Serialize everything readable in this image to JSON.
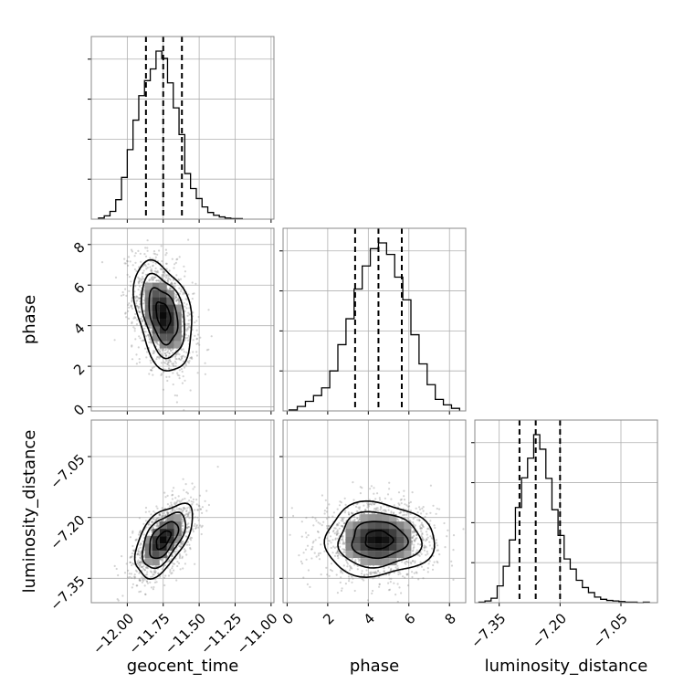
{
  "chart_data": {
    "type": "corner",
    "parameters": [
      "geocent_time",
      "phase",
      "luminosity_distance"
    ],
    "grid": true,
    "point_color": "#808080",
    "line_color": "#000000",
    "diagonal": [
      {
        "parameter": "geocent_time",
        "xlim": [
          -12.25,
          -10.98
        ],
        "ticks": [
          -12.0,
          -11.75,
          -11.5,
          -11.25,
          -11.0
        ],
        "tick_labels": [
          "−12.00",
          "−11.75",
          "−11.50",
          "−11.25",
          "−11.00"
        ],
        "quantiles": [
          -11.87,
          -11.75,
          -11.62
        ],
        "bin_edges": [
          -12.2,
          -12.16,
          -12.12,
          -12.08,
          -12.04,
          -12.0,
          -11.96,
          -11.92,
          -11.88,
          -11.84,
          -11.8,
          -11.76,
          -11.72,
          -11.68,
          -11.64,
          -11.6,
          -11.56,
          -11.52,
          -11.48,
          -11.44,
          -11.4,
          -11.36,
          -11.32,
          -11.28,
          -11.24,
          -11.2
        ],
        "counts": [
          2,
          6,
          14,
          35,
          75,
          125,
          178,
          222,
          249,
          270,
          302,
          289,
          245,
          200,
          152,
          82,
          55,
          37,
          22,
          12,
          7,
          4,
          2,
          1,
          1
        ]
      },
      {
        "parameter": "phase",
        "xlim": [
          -0.2,
          8.8
        ],
        "ticks": [
          0,
          2,
          4,
          6,
          8
        ],
        "tick_labels": [
          "0",
          "2",
          "4",
          "6",
          "8"
        ],
        "quantiles": [
          3.35,
          4.5,
          5.65
        ],
        "bin_edges": [
          0.1,
          0.5,
          0.9,
          1.3,
          1.7,
          2.1,
          2.5,
          2.9,
          3.3,
          3.7,
          4.1,
          4.5,
          4.9,
          5.3,
          5.7,
          6.1,
          6.5,
          6.9,
          7.3,
          7.7,
          8.1,
          8.5
        ],
        "counts": [
          3,
          14,
          30,
          48,
          72,
          125,
          207,
          288,
          381,
          453,
          507,
          525,
          489,
          418,
          347,
          238,
          147,
          82,
          36,
          19,
          8
        ]
      },
      {
        "parameter": "luminosity_distance",
        "xlim": [
          -7.41,
          -6.96
        ],
        "ticks": [
          -7.35,
          -7.2,
          -7.05
        ],
        "tick_labels": [
          "−7.35",
          "−7.20",
          "−7.05"
        ],
        "quantiles": [
          -7.3,
          -7.26,
          -7.2
        ],
        "bin_edges": [
          -7.4,
          -7.385,
          -7.37,
          -7.355,
          -7.34,
          -7.325,
          -7.31,
          -7.295,
          -7.28,
          -7.265,
          -7.25,
          -7.235,
          -7.22,
          -7.205,
          -7.19,
          -7.175,
          -7.16,
          -7.145,
          -7.13,
          -7.115,
          -7.1,
          -7.085,
          -7.07,
          -7.055,
          -7.04,
          -7.025,
          -7.01,
          -6.995,
          -6.98
        ],
        "counts": [
          1,
          3,
          8,
          30,
          65,
          112,
          170,
          223,
          258,
          300,
          274,
          222,
          166,
          120,
          78,
          60,
          40,
          27,
          18,
          10,
          6,
          4,
          3,
          2,
          1,
          1,
          0,
          1
        ]
      }
    ],
    "off_diagonal": [
      {
        "x": "geocent_time",
        "y": "phase",
        "ylim": [
          -0.2,
          8.8
        ],
        "y_ticks": [
          0,
          2,
          4,
          6,
          8
        ],
        "y_tick_labels": [
          "0",
          "2",
          "4",
          "6",
          "8"
        ],
        "x_mean": -11.75,
        "y_mean": 4.5,
        "x_std": 0.1,
        "y_std": 1.35,
        "correlation": -0.35,
        "contour_levels_sigma": [
          0.5,
          1.0,
          1.5,
          2.0
        ]
      },
      {
        "x": "geocent_time",
        "y": "luminosity_distance",
        "ylim": [
          -7.41,
          -6.96
        ],
        "y_ticks": [
          -7.35,
          -7.2,
          -7.05
        ],
        "y_tick_labels": [
          "−7.35",
          "−7.20",
          "−7.05"
        ],
        "x_mean": -11.75,
        "y_mean": -7.255,
        "x_std": 0.1,
        "y_std": 0.045,
        "correlation": 0.55,
        "contour_levels_sigma": [
          0.5,
          1.0,
          1.5,
          2.0
        ]
      },
      {
        "x": "phase",
        "y": "luminosity_distance",
        "ylim": [
          -7.41,
          -6.96
        ],
        "x_mean": 4.5,
        "y_mean": -7.255,
        "x_std": 1.35,
        "y_std": 0.045,
        "correlation": 0.0,
        "contour_levels_sigma": [
          0.5,
          1.0,
          1.5,
          2.0
        ]
      }
    ],
    "xlabels": [
      "geocent_time",
      "phase",
      "luminosity_distance"
    ],
    "ylabels": [
      "phase",
      "luminosity_distance"
    ]
  }
}
